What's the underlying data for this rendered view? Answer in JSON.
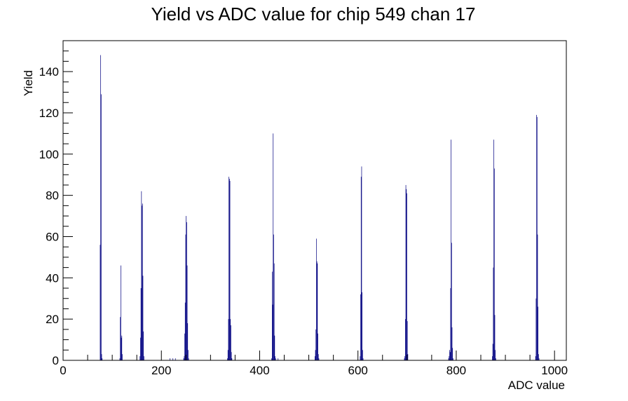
{
  "colors": {
    "histogram": "#000080",
    "axis": "#000000",
    "background": "#ffffff"
  },
  "chart_data": {
    "type": "bar",
    "title": "Yield vs ADC value for chip 549 chan 17",
    "xlabel": "ADC value",
    "ylabel": "Yield",
    "xlim": [
      0,
      1024
    ],
    "ylim": [
      0,
      155
    ],
    "grid": false,
    "legend": "none",
    "x_ticks": [
      0,
      200,
      400,
      600,
      800,
      1000
    ],
    "y_ticks": [
      0,
      20,
      40,
      60,
      80,
      100,
      120,
      140
    ],
    "bin_width": 1,
    "bins": [
      [
        75,
        56
      ],
      [
        76,
        148
      ],
      [
        77,
        129
      ],
      [
        78,
        3
      ],
      [
        79,
        1
      ],
      [
        115,
        1
      ],
      [
        116,
        21
      ],
      [
        117,
        46
      ],
      [
        118,
        11
      ],
      [
        119,
        12
      ],
      [
        120,
        3
      ],
      [
        156,
        2
      ],
      [
        157,
        11
      ],
      [
        158,
        35
      ],
      [
        159,
        82
      ],
      [
        160,
        75
      ],
      [
        161,
        76
      ],
      [
        162,
        41
      ],
      [
        163,
        14
      ],
      [
        164,
        2
      ],
      [
        217,
        1
      ],
      [
        223,
        1
      ],
      [
        228,
        1
      ],
      [
        245,
        1
      ],
      [
        246,
        2
      ],
      [
        247,
        13
      ],
      [
        248,
        28
      ],
      [
        249,
        61
      ],
      [
        250,
        70
      ],
      [
        251,
        67
      ],
      [
        252,
        46
      ],
      [
        253,
        18
      ],
      [
        254,
        5
      ],
      [
        255,
        1
      ],
      [
        334,
        1
      ],
      [
        335,
        5
      ],
      [
        336,
        20
      ],
      [
        337,
        89
      ],
      [
        338,
        88
      ],
      [
        339,
        87
      ],
      [
        340,
        20
      ],
      [
        341,
        17
      ],
      [
        342,
        4
      ],
      [
        343,
        1
      ],
      [
        424,
        1
      ],
      [
        425,
        43
      ],
      [
        426,
        27
      ],
      [
        427,
        110
      ],
      [
        428,
        61
      ],
      [
        429,
        47
      ],
      [
        430,
        12
      ],
      [
        431,
        2
      ],
      [
        432,
        1
      ],
      [
        437,
        1
      ],
      [
        512,
        2
      ],
      [
        513,
        5
      ],
      [
        514,
        15
      ],
      [
        515,
        59
      ],
      [
        516,
        48
      ],
      [
        517,
        47
      ],
      [
        518,
        13
      ],
      [
        519,
        3
      ],
      [
        520,
        1
      ],
      [
        604,
        2
      ],
      [
        605,
        32
      ],
      [
        606,
        89
      ],
      [
        607,
        94
      ],
      [
        608,
        33
      ],
      [
        609,
        5
      ],
      [
        610,
        1
      ],
      [
        694,
        1
      ],
      [
        695,
        2
      ],
      [
        696,
        20
      ],
      [
        697,
        85
      ],
      [
        698,
        83
      ],
      [
        699,
        81
      ],
      [
        700,
        19
      ],
      [
        701,
        3
      ],
      [
        784,
        1
      ],
      [
        785,
        2
      ],
      [
        786,
        5
      ],
      [
        787,
        4
      ],
      [
        788,
        35
      ],
      [
        789,
        107
      ],
      [
        790,
        57
      ],
      [
        791,
        16
      ],
      [
        792,
        6
      ],
      [
        793,
        1
      ],
      [
        873,
        2
      ],
      [
        874,
        8
      ],
      [
        875,
        45
      ],
      [
        876,
        107
      ],
      [
        877,
        93
      ],
      [
        878,
        22
      ],
      [
        879,
        5
      ],
      [
        880,
        1
      ],
      [
        961,
        2
      ],
      [
        962,
        30
      ],
      [
        963,
        119
      ],
      [
        964,
        118
      ],
      [
        965,
        61
      ],
      [
        966,
        26
      ],
      [
        967,
        3
      ],
      [
        968,
        1
      ]
    ]
  }
}
